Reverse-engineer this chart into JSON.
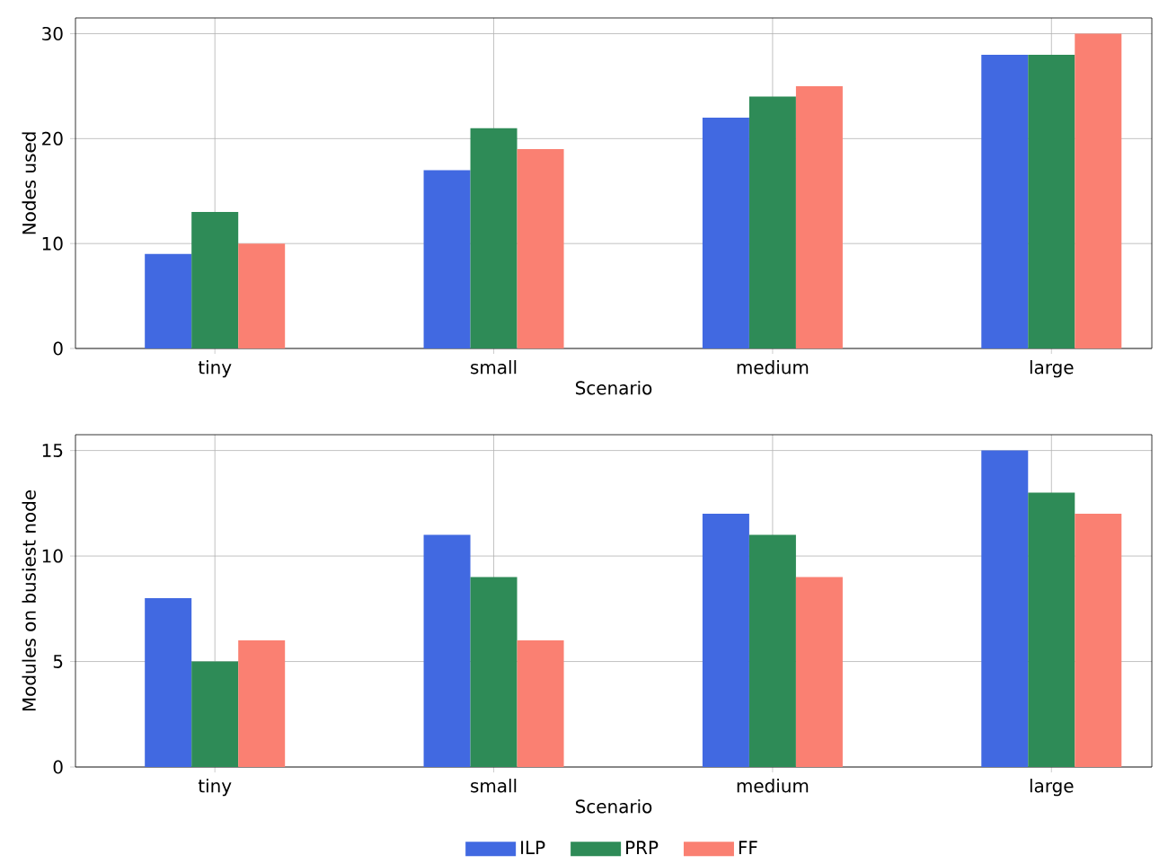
{
  "chart_data": [
    {
      "type": "bar",
      "xlabel": "Scenario",
      "ylabel": "Nodes used",
      "categories": [
        "tiny",
        "small",
        "medium",
        "large"
      ],
      "ylim": [
        0,
        31.5
      ],
      "yticks": [
        0,
        10,
        20,
        30
      ],
      "grid": true,
      "legend": false,
      "series": [
        {
          "color": "#4169e1",
          "values": [
            9,
            17,
            22,
            28
          ]
        },
        {
          "color": "#2e8b57",
          "values": [
            13,
            21,
            24,
            28
          ]
        },
        {
          "color": "#fa8072",
          "values": [
            10,
            19,
            25,
            30
          ]
        }
      ]
    },
    {
      "type": "bar",
      "xlabel": "Scenario",
      "ylabel": "Modules on busiest node",
      "categories": [
        "tiny",
        "small",
        "medium",
        "large"
      ],
      "ylim": [
        0,
        15.75
      ],
      "yticks": [
        0,
        5,
        10,
        15
      ],
      "grid": true,
      "legend": "bottom",
      "series": [
        {
          "name": "ILP",
          "color": "#4169e1",
          "values": [
            8,
            11,
            12,
            15
          ]
        },
        {
          "name": "PRP",
          "color": "#2e8b57",
          "values": [
            5,
            9,
            11,
            13
          ]
        },
        {
          "name": "FF",
          "color": "#fa8072",
          "values": [
            6,
            6,
            9,
            12
          ]
        }
      ]
    }
  ]
}
